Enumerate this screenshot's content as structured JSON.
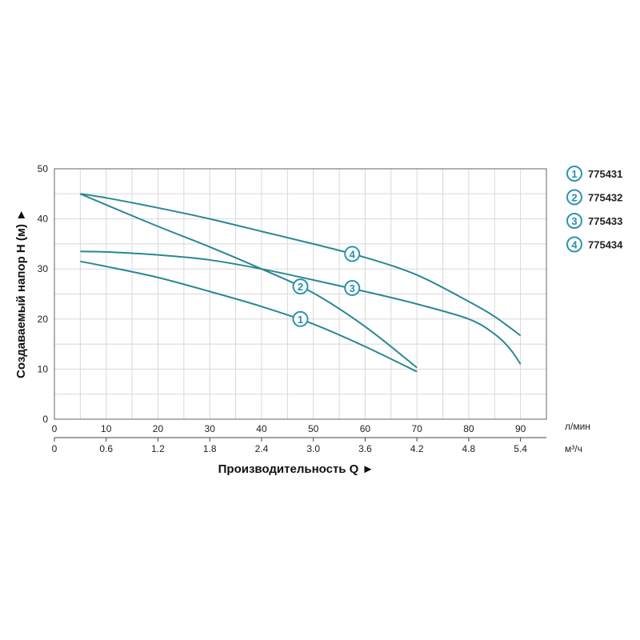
{
  "chart_data": {
    "type": "line",
    "ylabel": "Создаваемый напор H (м) ►",
    "xlabel": "Производительность Q ►",
    "x_unit_primary": "л/мин",
    "x_unit_secondary": "м³/ч",
    "xlim": [
      0,
      95
    ],
    "ylim": [
      0,
      50
    ],
    "x_ticks": [
      0,
      10,
      20,
      30,
      40,
      50,
      60,
      70,
      80,
      90
    ],
    "x_tick_labels": [
      "0",
      "10",
      "20",
      "30",
      "40",
      "50",
      "60",
      "70",
      "80",
      "90"
    ],
    "x2_tick_labels": [
      "0",
      "0.6",
      "1.2",
      "1.8",
      "2.4",
      "3.0",
      "3.6",
      "4.2",
      "4.8",
      "5.4"
    ],
    "y_ticks": [
      0,
      10,
      20,
      30,
      40,
      50
    ],
    "y_tick_labels": [
      "0",
      "10",
      "20",
      "30",
      "40",
      "50"
    ],
    "grid": true,
    "legend_placement": "right",
    "colors": {
      "line": "#2a8793",
      "marker": "#2b95b0",
      "grid": "#d8d8d8"
    },
    "series": [
      {
        "name": "775431",
        "marker": "1",
        "marker_at": [
          47.5,
          20
        ],
        "x": [
          5,
          10,
          20,
          30,
          40,
          50,
          60,
          70
        ],
        "y": [
          31.5,
          30.5,
          28.3,
          25.5,
          22.5,
          19,
          14.5,
          9.5
        ]
      },
      {
        "name": "775432",
        "marker": "2",
        "marker_at": [
          47.5,
          26.5
        ],
        "x": [
          5,
          10,
          20,
          30,
          40,
          50,
          60,
          70
        ],
        "y": [
          45,
          42.8,
          38.5,
          34.4,
          30,
          25.2,
          18.5,
          10.3
        ]
      },
      {
        "name": "775433",
        "marker": "3",
        "marker_at": [
          57.5,
          26.2
        ],
        "x": [
          5,
          10,
          20,
          30,
          40,
          50,
          60,
          70,
          80,
          85,
          88,
          90
        ],
        "y": [
          33.5,
          33.4,
          32.8,
          31.8,
          30,
          27.8,
          25.5,
          23,
          20,
          17,
          14,
          11
        ]
      },
      {
        "name": "775434",
        "marker": "4",
        "marker_at": [
          57.5,
          33
        ],
        "x": [
          5,
          10,
          20,
          30,
          40,
          50,
          60,
          70,
          80,
          85,
          90
        ],
        "y": [
          45,
          44.2,
          42.2,
          40,
          37.5,
          35,
          32.3,
          28.8,
          23.5,
          20.5,
          16.7
        ]
      }
    ]
  }
}
